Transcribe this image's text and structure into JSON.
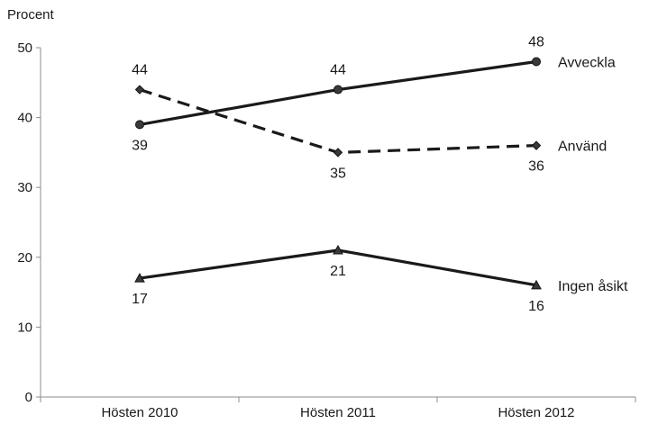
{
  "chart_data": {
    "type": "line",
    "ylabel": "Procent",
    "xlabel": "",
    "ylim": [
      0,
      50
    ],
    "yticks": [
      0,
      10,
      20,
      30,
      40,
      50
    ],
    "categories": [
      "Hösten 2010",
      "Hösten 2011",
      "Hösten 2012"
    ],
    "grid": false,
    "legend": "inline-right",
    "series": [
      {
        "name": "Avveckla",
        "values": [
          39,
          44,
          48
        ],
        "labels": [
          "39",
          "44",
          "48"
        ],
        "style": "solid",
        "marker": "circle",
        "color": "#1a1a1a"
      },
      {
        "name": "Använd",
        "values": [
          44,
          35,
          36
        ],
        "labels": [
          "44",
          "35",
          "36"
        ],
        "style": "dashed",
        "marker": "diamond",
        "color": "#1a1a1a"
      },
      {
        "name": "Ingen åsikt",
        "values": [
          17,
          21,
          16
        ],
        "labels": [
          "17",
          "21",
          "16"
        ],
        "style": "solid",
        "marker": "triangle",
        "color": "#1a1a1a"
      }
    ]
  }
}
